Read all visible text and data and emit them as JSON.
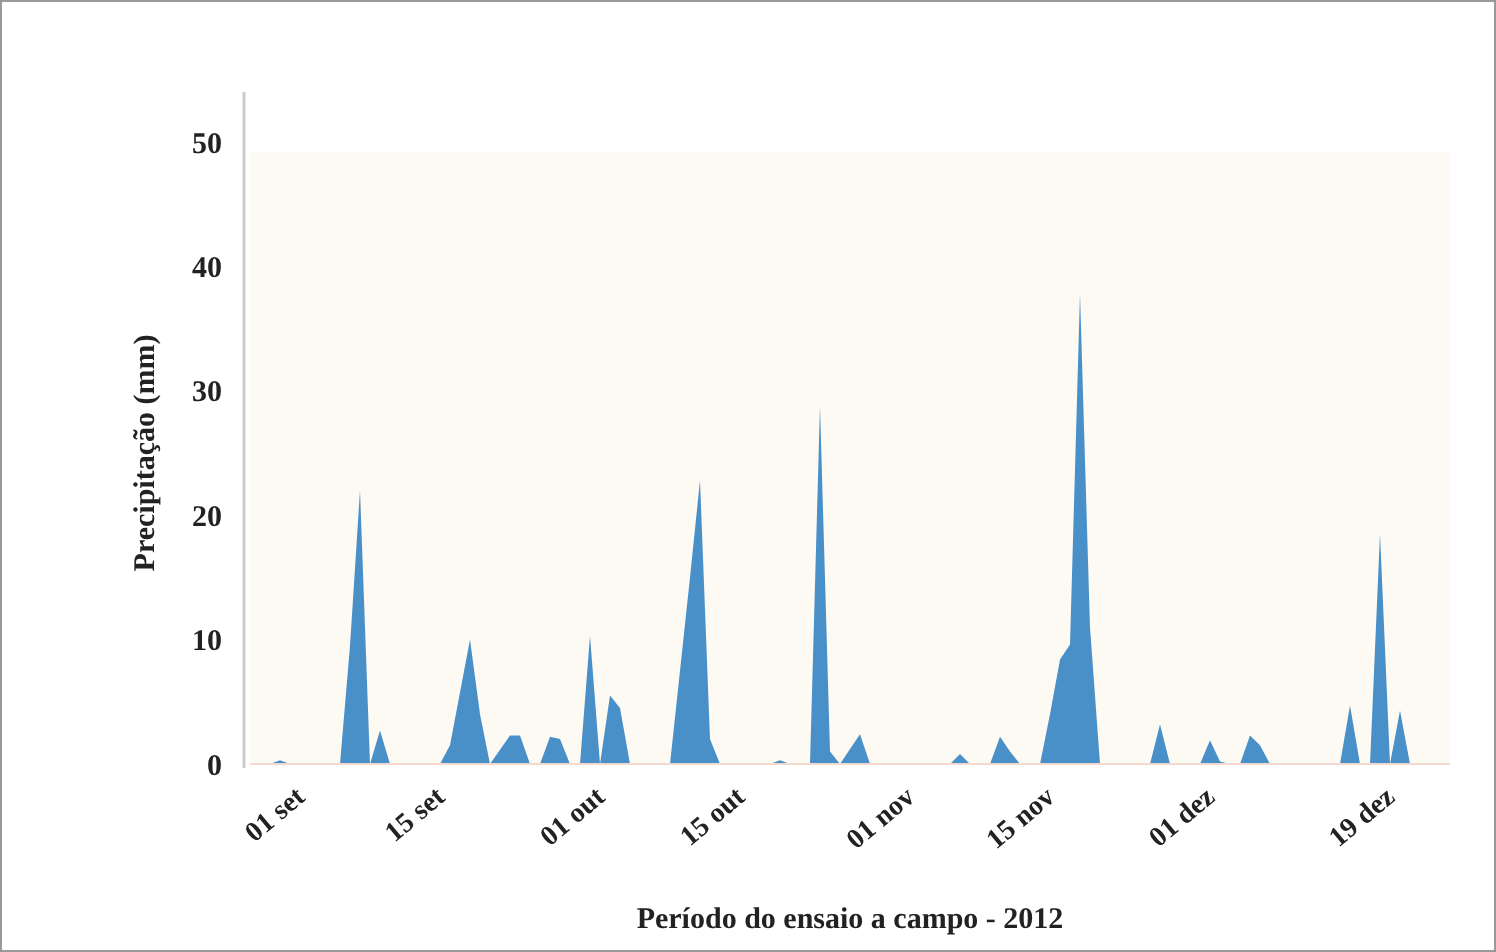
{
  "chart_data": {
    "type": "area",
    "xlabel": "Período do ensaio a campo - 2012",
    "ylabel": "Precipitação (mm)",
    "x": [
      "2012-08-27",
      "2012-08-29",
      "2012-08-30",
      "2012-08-31",
      "2012-09-05",
      "2012-09-06",
      "2012-09-07",
      "2012-09-08",
      "2012-09-09",
      "2012-09-10",
      "2012-09-15",
      "2012-09-16",
      "2012-09-18",
      "2012-09-19",
      "2012-09-20",
      "2012-09-22",
      "2012-09-23",
      "2012-09-24",
      "2012-09-25",
      "2012-09-26",
      "2012-09-27",
      "2012-09-28",
      "2012-09-29",
      "2012-09-30",
      "2012-10-01",
      "2012-10-02",
      "2012-10-03",
      "2012-10-04",
      "2012-10-08",
      "2012-10-09",
      "2012-10-10",
      "2012-10-11",
      "2012-10-12",
      "2012-10-13",
      "2012-10-18",
      "2012-10-19",
      "2012-10-20",
      "2012-10-22",
      "2012-10-23",
      "2012-10-24",
      "2012-10-25",
      "2012-10-26",
      "2012-10-27",
      "2012-10-28",
      "2012-11-05",
      "2012-11-06",
      "2012-11-07",
      "2012-11-09",
      "2012-11-10",
      "2012-11-11",
      "2012-11-12",
      "2012-11-14",
      "2012-11-15",
      "2012-11-16",
      "2012-11-17",
      "2012-11-18",
      "2012-11-19",
      "2012-11-20",
      "2012-11-25",
      "2012-11-26",
      "2012-11-27",
      "2012-11-30",
      "2012-12-01",
      "2012-12-02",
      "2012-12-03",
      "2012-12-04",
      "2012-12-05",
      "2012-12-06",
      "2012-12-07",
      "2012-12-14",
      "2012-12-15",
      "2012-12-16",
      "2012-12-17",
      "2012-12-18",
      "2012-12-19",
      "2012-12-20",
      "2012-12-21",
      "2012-12-25"
    ],
    "values": [
      0,
      0,
      0.3,
      0,
      0,
      9.5,
      22,
      0,
      2.7,
      0,
      0,
      1.5,
      10,
      4,
      0,
      2.3,
      2.3,
      0,
      0,
      2.2,
      2,
      0,
      0,
      10.3,
      0,
      5.5,
      4.5,
      0,
      0,
      7.5,
      15,
      22.8,
      2,
      0,
      0,
      0.3,
      0,
      0,
      28.8,
      1,
      0,
      1.2,
      2.4,
      0,
      0,
      0.8,
      0,
      0,
      2.2,
      1,
      0,
      0,
      4,
      8.4,
      9.6,
      37.8,
      11,
      0,
      0,
      3.2,
      0,
      0,
      1.9,
      0.2,
      0,
      0,
      2.3,
      1.5,
      0,
      0,
      4.7,
      0,
      0,
      18.5,
      0,
      4.3,
      0,
      0
    ],
    "color": "#4a90c8",
    "xlim": [
      "2012-08-27",
      "2012-12-25"
    ],
    "xticks": [
      {
        "value": "2012-09-01",
        "label": "01 set"
      },
      {
        "value": "2012-09-15",
        "label": "15 set"
      },
      {
        "value": "2012-10-01",
        "label": "01 out"
      },
      {
        "value": "2012-10-15",
        "label": "15 out"
      },
      {
        "value": "2012-11-01",
        "label": "01 nov"
      },
      {
        "value": "2012-11-15",
        "label": "15 nov"
      },
      {
        "value": "2012-12-01",
        "label": "01 dez"
      },
      {
        "value": "2012-12-19",
        "label": "19 dez"
      }
    ],
    "ylim": [
      0,
      50
    ],
    "yticks": [
      0,
      10,
      20,
      30,
      40,
      50
    ],
    "grid": false
  }
}
